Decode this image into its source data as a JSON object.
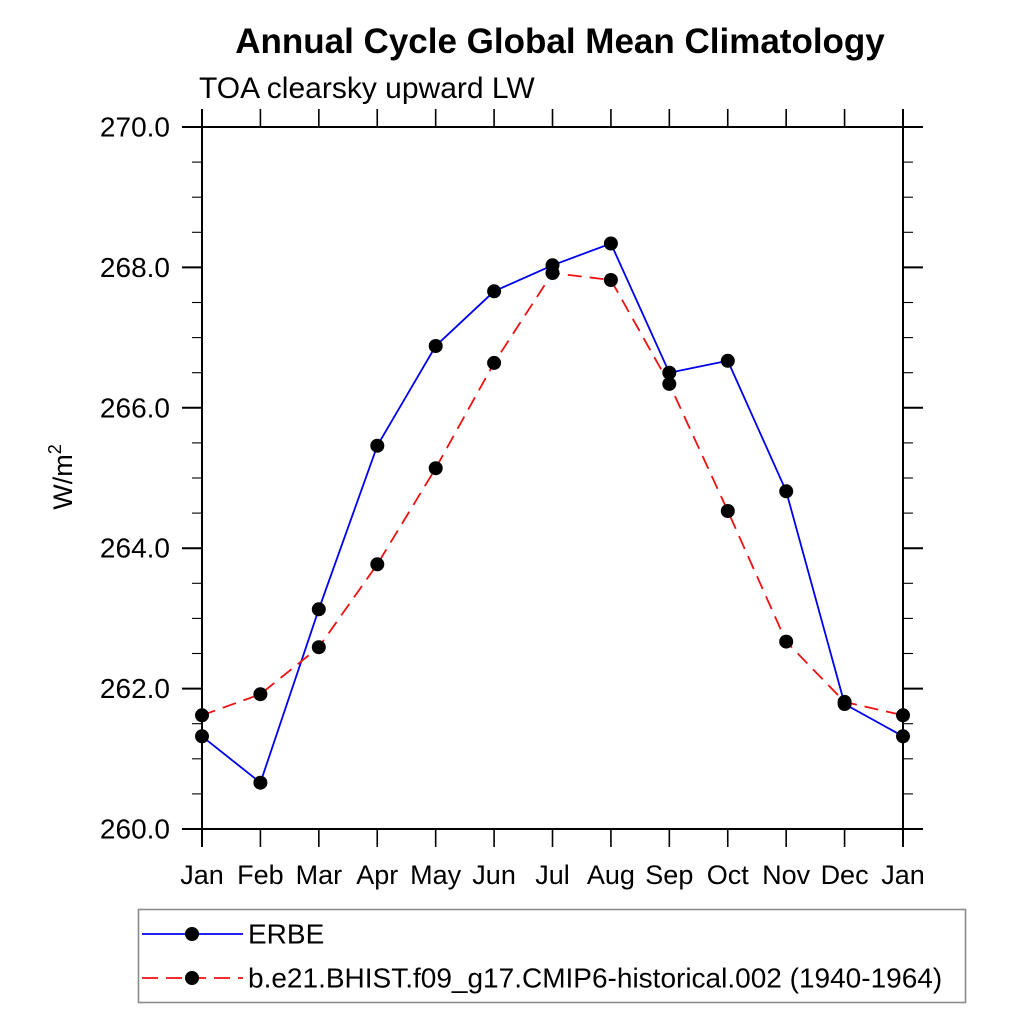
{
  "page": {
    "title": "Annual Cycle Global Mean Climatology",
    "subtitle": "TOA clearsky upward LW"
  },
  "chart_data": {
    "type": "line",
    "title": "Annual Cycle Global Mean Climatology",
    "subtitle": "TOA clearsky upward LW",
    "ylabel_base": "W/m",
    "ylabel_sup": "2",
    "xlabel": "",
    "categories": [
      "Jan",
      "Feb",
      "Mar",
      "Apr",
      "May",
      "Jun",
      "Jul",
      "Aug",
      "Sep",
      "Oct",
      "Nov",
      "Dec",
      "Jan"
    ],
    "ylim": [
      260.0,
      270.0
    ],
    "y_major_step": 2.0,
    "y_minor_step": 0.5,
    "y_tick_labels": [
      "260.0",
      "262.0",
      "264.0",
      "266.0",
      "268.0",
      "270.0"
    ],
    "grid": false,
    "legend_position": "bottom-left-box",
    "axis_color": "#000000",
    "legend_border_color": "#8a8a8a",
    "marker_color": "#000000",
    "series": [
      {
        "name": "ERBE",
        "color": "#0000ee",
        "style": "solid",
        "marker": "circle",
        "values": [
          261.32,
          260.66,
          263.13,
          265.46,
          266.88,
          267.66,
          268.03,
          268.34,
          266.5,
          266.67,
          264.81,
          261.78,
          261.32
        ]
      },
      {
        "name": "b.e21.BHIST.f09_g17.CMIP6-historical.002 (1940-1964)",
        "color": "#ee1111",
        "style": "dashed",
        "marker": "circle",
        "values": [
          261.62,
          261.92,
          262.59,
          263.77,
          265.14,
          266.64,
          267.92,
          267.82,
          266.34,
          264.53,
          262.67,
          261.81,
          261.62
        ]
      }
    ]
  }
}
